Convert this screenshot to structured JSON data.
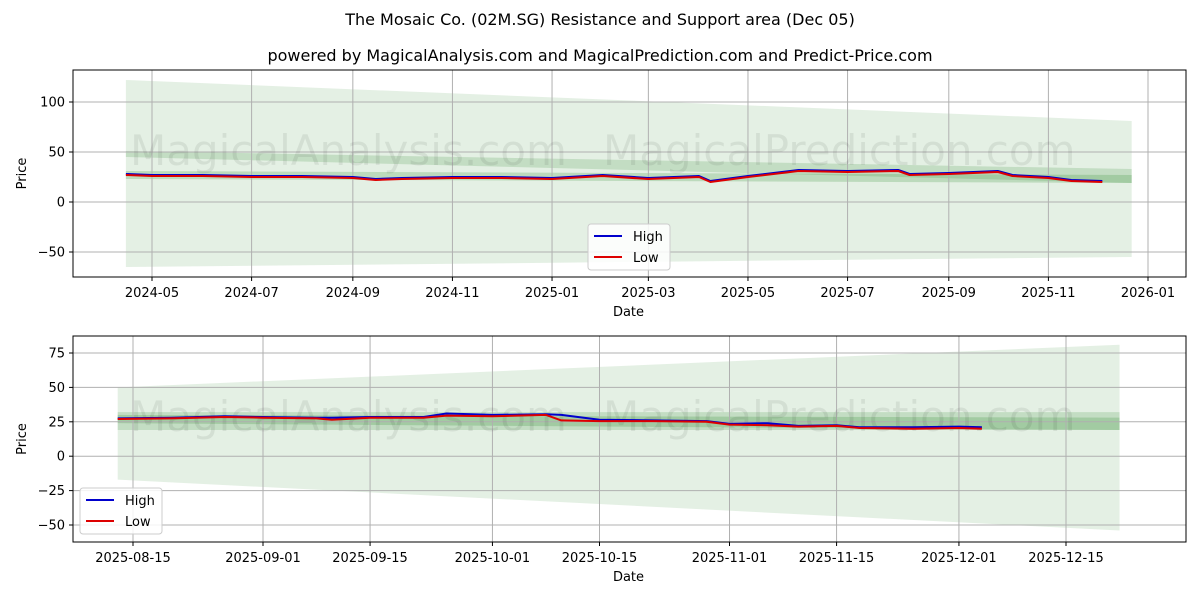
{
  "header": {
    "title": "The Mosaic Co. (02M.SG) Resistance and Support area (Dec 05)",
    "subtitle": "powered by MagicalAnalysis.com and MagicalPrediction.com and Predict-Price.com"
  },
  "watermarks": [
    "MagicalAnalysis.com",
    "MagicalPrediction.com"
  ],
  "colors": {
    "high": "#0000cc",
    "low": "#dd0000",
    "band_light": "#c8e3c8",
    "band_mid": "#a9d4a9",
    "band_dark": "#8cc58c",
    "grid": "#b0b0b0"
  },
  "chart_data": [
    {
      "type": "line",
      "title": "The Mosaic Co. (02M.SG) Resistance and Support area (Dec 05)",
      "xlabel": "Date",
      "ylabel": "Price",
      "ylim": [
        -75,
        132
      ],
      "grid": true,
      "legend_position": "lower center",
      "legend": [
        "High",
        "Low"
      ],
      "x_ticks": [
        "2024-05",
        "2024-07",
        "2024-09",
        "2024-11",
        "2025-01",
        "2025-03",
        "2025-05",
        "2025-07",
        "2025-09",
        "2025-11",
        "2026-01"
      ],
      "y_ticks": [
        100,
        50,
        0,
        -50
      ],
      "x": [
        "2024-04-15",
        "2024-05-01",
        "2024-06-01",
        "2024-07-01",
        "2024-08-01",
        "2024-09-01",
        "2024-09-15",
        "2024-10-01",
        "2024-11-01",
        "2024-12-01",
        "2025-01-01",
        "2025-02-01",
        "2025-03-01",
        "2025-04-01",
        "2025-04-08",
        "2025-05-01",
        "2025-06-01",
        "2025-07-01",
        "2025-08-01",
        "2025-08-08",
        "2025-09-01",
        "2025-10-01",
        "2025-10-10",
        "2025-11-01",
        "2025-11-15",
        "2025-12-04"
      ],
      "series": [
        {
          "name": "High",
          "values": [
            28,
            27,
            27,
            26,
            26,
            25,
            23,
            24,
            25,
            25,
            24,
            27,
            24,
            26,
            21,
            26,
            32,
            31,
            32,
            28,
            29,
            31,
            27,
            25,
            22,
            21
          ]
        },
        {
          "name": "Low",
          "values": [
            27,
            26,
            26,
            25,
            25,
            24,
            22,
            23,
            24,
            24,
            23,
            26,
            23,
            25,
            20,
            25,
            31,
            30,
            31,
            27,
            28,
            30,
            26,
            24,
            21,
            20
          ]
        }
      ],
      "bands": [
        {
          "name": "outer_resistance_fan",
          "x": [
            "2024-04-15",
            "2025-12-22"
          ],
          "upper": [
            122,
            81
          ],
          "lower": [
            -65,
            -55
          ]
        },
        {
          "name": "resistance_zone",
          "x": [
            "2024-04-15",
            "2025-12-22"
          ],
          "upper": [
            51,
            33
          ],
          "lower": [
            45,
            19
          ]
        },
        {
          "name": "support_zone",
          "x": [
            "2024-04-15",
            "2025-12-22"
          ],
          "upper": [
            31,
            27
          ],
          "lower": [
            23,
            19
          ]
        }
      ]
    },
    {
      "type": "line",
      "xlabel": "Date",
      "ylabel": "Price",
      "ylim": [
        -62,
        88
      ],
      "grid": true,
      "legend_position": "lower left",
      "legend": [
        "High",
        "Low"
      ],
      "x_ticks": [
        "2025-08-15",
        "2025-09-01",
        "2025-09-15",
        "2025-10-01",
        "2025-10-15",
        "2025-11-01",
        "2025-11-15",
        "2025-12-01",
        "2025-12-15"
      ],
      "y_ticks": [
        75,
        50,
        25,
        0,
        -25,
        -50
      ],
      "x": [
        "2025-08-13",
        "2025-08-20",
        "2025-08-27",
        "2025-09-01",
        "2025-09-08",
        "2025-09-10",
        "2025-09-15",
        "2025-09-22",
        "2025-09-25",
        "2025-10-01",
        "2025-10-08",
        "2025-10-10",
        "2025-10-15",
        "2025-10-22",
        "2025-10-29",
        "2025-11-01",
        "2025-11-06",
        "2025-11-10",
        "2025-11-15",
        "2025-11-18",
        "2025-11-25",
        "2025-12-01",
        "2025-12-04"
      ],
      "series": [
        {
          "name": "High",
          "values": [
            27.5,
            28,
            29,
            28.5,
            28,
            28,
            28.5,
            28.5,
            31,
            30,
            30.5,
            30,
            26.5,
            26,
            25.5,
            23.5,
            24,
            22,
            22.5,
            21,
            21,
            21.5,
            21
          ]
        },
        {
          "name": "Low",
          "values": [
            27,
            27.5,
            28.5,
            28,
            27.5,
            26.5,
            28,
            28,
            29.5,
            29,
            30,
            26,
            25.5,
            25.5,
            25,
            23,
            22.5,
            21.5,
            22,
            20.5,
            20,
            20.5,
            20
          ]
        }
      ],
      "bands": [
        {
          "name": "outer_fan",
          "x": [
            "2025-08-13",
            "2025-12-22"
          ],
          "upper": [
            50,
            81
          ],
          "lower": [
            -17,
            -54
          ]
        },
        {
          "name": "resistance_zone",
          "x": [
            "2025-08-13",
            "2025-12-22"
          ],
          "upper": [
            32,
            32
          ],
          "lower": [
            19,
            19
          ]
        },
        {
          "name": "support_zone",
          "x": [
            "2025-08-13",
            "2025-12-22"
          ],
          "upper": [
            30,
            28
          ],
          "lower": [
            24,
            19
          ]
        }
      ]
    }
  ]
}
